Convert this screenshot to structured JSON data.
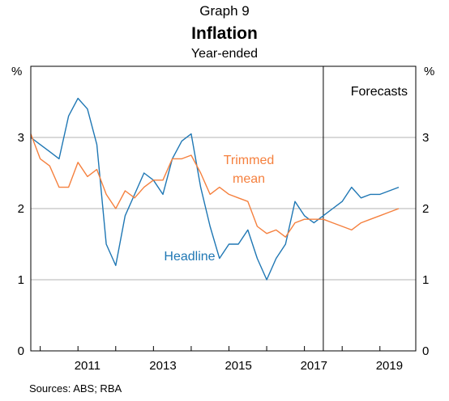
{
  "chart_data": {
    "type": "line",
    "supertitle": "Graph 9",
    "title": "Inflation",
    "subtitle": "Year-ended",
    "y_unit_left": "%",
    "y_unit_right": "%",
    "ylim": [
      0,
      4
    ],
    "yticks": [
      0,
      1,
      2,
      3
    ],
    "xlim": [
      2009.75,
      2019.95
    ],
    "xticks": [
      {
        "label": "2011",
        "value": 2011.25
      },
      {
        "label": "2013",
        "value": 2013.25
      },
      {
        "label": "2015",
        "value": 2015.25
      },
      {
        "label": "2017",
        "value": 2017.25
      },
      {
        "label": "2019",
        "value": 2019.25
      }
    ],
    "grid": true,
    "forecast_start": 2017.5,
    "forecast_label": "Forecasts",
    "source": "Sources:   ABS; RBA",
    "series": [
      {
        "name": "Headline",
        "color": "#1f77b4",
        "points": [
          [
            2009.75,
            3.0
          ],
          [
            2010.0,
            2.9
          ],
          [
            2010.25,
            2.8
          ],
          [
            2010.5,
            2.7
          ],
          [
            2010.75,
            3.3
          ],
          [
            2011.0,
            3.55
          ],
          [
            2011.25,
            3.4
          ],
          [
            2011.5,
            2.9
          ],
          [
            2011.75,
            1.5
          ],
          [
            2012.0,
            1.2
          ],
          [
            2012.25,
            1.9
          ],
          [
            2012.5,
            2.2
          ],
          [
            2012.75,
            2.5
          ],
          [
            2013.0,
            2.4
          ],
          [
            2013.25,
            2.2
          ],
          [
            2013.5,
            2.7
          ],
          [
            2013.75,
            2.95
          ],
          [
            2014.0,
            3.05
          ],
          [
            2014.25,
            2.3
          ],
          [
            2014.5,
            1.75
          ],
          [
            2014.75,
            1.3
          ],
          [
            2015.0,
            1.5
          ],
          [
            2015.25,
            1.5
          ],
          [
            2015.5,
            1.7
          ],
          [
            2015.75,
            1.3
          ],
          [
            2016.0,
            1.0
          ],
          [
            2016.25,
            1.3
          ],
          [
            2016.5,
            1.5
          ],
          [
            2016.75,
            2.1
          ],
          [
            2017.0,
            1.9
          ],
          [
            2017.25,
            1.8
          ],
          [
            2017.5,
            1.9
          ],
          [
            2017.75,
            2.0
          ],
          [
            2018.0,
            2.1
          ],
          [
            2018.25,
            2.3
          ],
          [
            2018.5,
            2.15
          ],
          [
            2018.75,
            2.2
          ],
          [
            2019.0,
            2.2
          ],
          [
            2019.25,
            2.25
          ],
          [
            2019.5,
            2.3
          ]
        ]
      },
      {
        "name": "Trimmed mean",
        "color": "#f5803e",
        "points": [
          [
            2009.75,
            3.05
          ],
          [
            2010.0,
            2.7
          ],
          [
            2010.25,
            2.6
          ],
          [
            2010.5,
            2.3
          ],
          [
            2010.75,
            2.3
          ],
          [
            2011.0,
            2.65
          ],
          [
            2011.25,
            2.45
          ],
          [
            2011.5,
            2.55
          ],
          [
            2011.75,
            2.2
          ],
          [
            2012.0,
            2.0
          ],
          [
            2012.25,
            2.25
          ],
          [
            2012.5,
            2.15
          ],
          [
            2012.75,
            2.3
          ],
          [
            2013.0,
            2.4
          ],
          [
            2013.25,
            2.4
          ],
          [
            2013.5,
            2.7
          ],
          [
            2013.75,
            2.7
          ],
          [
            2014.0,
            2.75
          ],
          [
            2014.25,
            2.5
          ],
          [
            2014.5,
            2.2
          ],
          [
            2014.75,
            2.3
          ],
          [
            2015.0,
            2.2
          ],
          [
            2015.25,
            2.15
          ],
          [
            2015.5,
            2.1
          ],
          [
            2015.75,
            1.75
          ],
          [
            2016.0,
            1.65
          ],
          [
            2016.25,
            1.7
          ],
          [
            2016.5,
            1.6
          ],
          [
            2016.75,
            1.8
          ],
          [
            2017.0,
            1.85
          ],
          [
            2017.25,
            1.85
          ],
          [
            2017.5,
            1.85
          ],
          [
            2017.75,
            1.8
          ],
          [
            2018.0,
            1.75
          ],
          [
            2018.25,
            1.7
          ],
          [
            2018.5,
            1.8
          ],
          [
            2018.75,
            1.85
          ],
          [
            2019.0,
            1.9
          ],
          [
            2019.25,
            1.95
          ],
          [
            2019.5,
            2.0
          ]
        ]
      }
    ],
    "labels": {
      "headline": "Headline",
      "trimmed_line1": "Trimmed",
      "trimmed_line2": "mean"
    }
  }
}
